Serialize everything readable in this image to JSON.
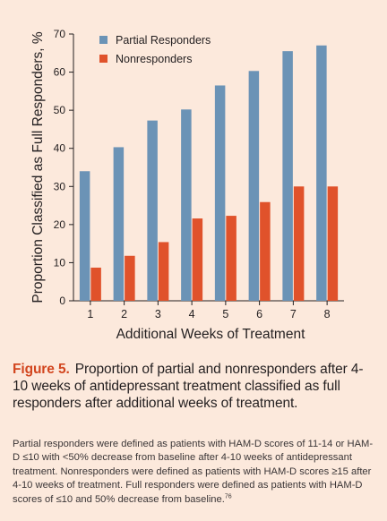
{
  "chart_data": {
    "type": "bar",
    "xlabel": "Additional Weeks of Treatment",
    "ylabel": "Proportion Classified as Full Responders, %",
    "categories": [
      "1",
      "2",
      "3",
      "4",
      "5",
      "6",
      "7",
      "8"
    ],
    "series": [
      {
        "name": "Partial Responders",
        "color": "#6b93b6",
        "values": [
          34,
          40.3,
          47.3,
          50.2,
          56.5,
          60.3,
          65.5,
          67
        ]
      },
      {
        "name": "Nonresponders",
        "color": "#e0522b",
        "values": [
          8.7,
          11.8,
          15.4,
          21.6,
          22.3,
          25.9,
          30,
          30
        ]
      }
    ],
    "ylim": [
      0,
      70
    ],
    "yticks": [
      0,
      10,
      20,
      30,
      40,
      50,
      60,
      70
    ],
    "grid": false,
    "legend_position": "top-left"
  },
  "caption": {
    "label": "Figure 5.",
    "text": "Proportion of partial and nonresponders after 4-10 weeks of antidepressant treatment classified as full responders after additional weeks of treatment."
  },
  "footnote": {
    "text": "Partial responders were defined as patients with HAM-D scores of 11-14 or HAM-D ≤10 with <50% decrease from baseline after 4-10 weeks of antidepressant treatment. Nonresponders were defined as patients with HAM-D scores ≥15 after 4-10 weeks of treatment. Full responders were defined as patients with HAM-D scores of ≤10 and 50% decrease from baseline.",
    "reference": "76"
  }
}
